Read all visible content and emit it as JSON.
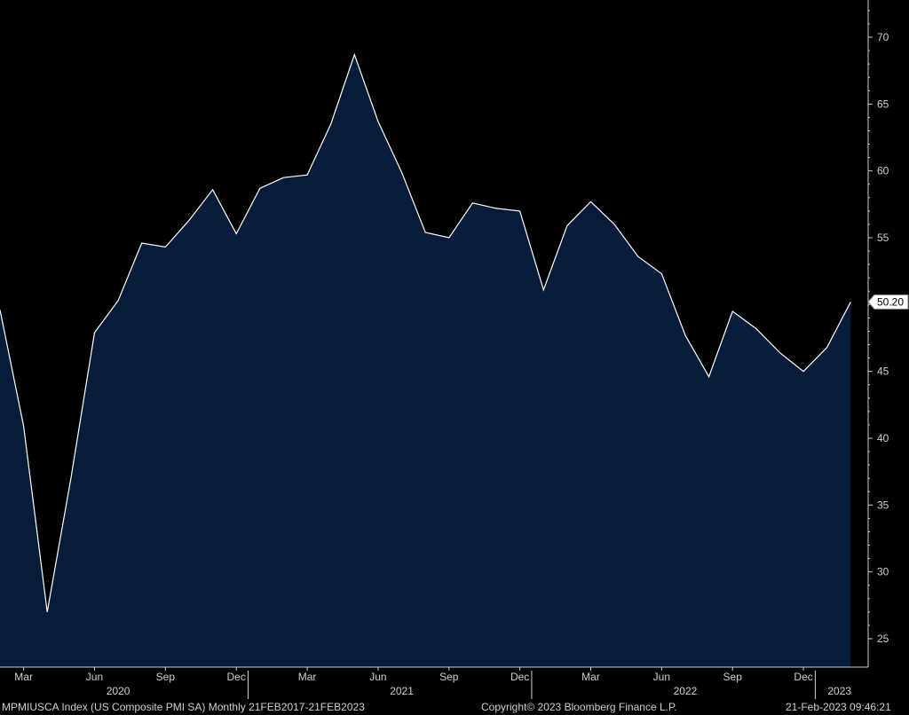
{
  "footer": {
    "ticker": "MPMIUSCA Index (US Composite PMI SA)  Monthly 21FEB2017-21FEB2023",
    "copyright": "Copyright© 2023 Bloomberg Finance L.P.",
    "timestamp": "21-Feb-2023 09:46:21"
  },
  "colors": {
    "fill": "#061c3a",
    "line": "#ffffff",
    "background": "#000000",
    "axis": "#cfcfcf"
  },
  "chart_data": {
    "type": "area",
    "title": "",
    "xlabel": "",
    "ylabel": "",
    "ylim": [
      23,
      73
    ],
    "grid": false,
    "y_ticks": [
      "25",
      "30",
      "35",
      "40",
      "45",
      "50",
      "55",
      "60",
      "65",
      "70"
    ],
    "last_value_label": "50.20",
    "x_ticks": [
      "Mar",
      "Jun",
      "Sep",
      "Dec",
      "Mar",
      "Jun",
      "Sep",
      "Dec",
      "Mar",
      "Jun",
      "Sep",
      "Dec"
    ],
    "x_years": [
      "2020",
      "2021",
      "2022",
      "2023"
    ],
    "series": [
      {
        "x": [
          "2020-02",
          "2020-03",
          "2020-04",
          "2020-05",
          "2020-06",
          "2020-07",
          "2020-08",
          "2020-09",
          "2020-10",
          "2020-11",
          "2020-12",
          "2021-01",
          "2021-02",
          "2021-03",
          "2021-04",
          "2021-05",
          "2021-06",
          "2021-07",
          "2021-08",
          "2021-09",
          "2021-10",
          "2021-11",
          "2021-12",
          "2022-01",
          "2022-02",
          "2022-03",
          "2022-04",
          "2022-05",
          "2022-06",
          "2022-07",
          "2022-08",
          "2022-09",
          "2022-10",
          "2022-11",
          "2022-12",
          "2023-01",
          "2023-02"
        ],
        "values": [
          49.6,
          40.9,
          27.0,
          37.0,
          47.9,
          50.3,
          54.6,
          54.3,
          56.3,
          58.6,
          55.3,
          58.7,
          59.5,
          59.7,
          63.5,
          68.7,
          63.7,
          59.9,
          55.4,
          55.0,
          57.6,
          57.2,
          57.0,
          51.1,
          55.9,
          57.7,
          56.0,
          53.6,
          52.3,
          47.7,
          44.6,
          49.5,
          48.2,
          46.4,
          45.0,
          46.8,
          50.2
        ]
      }
    ]
  }
}
